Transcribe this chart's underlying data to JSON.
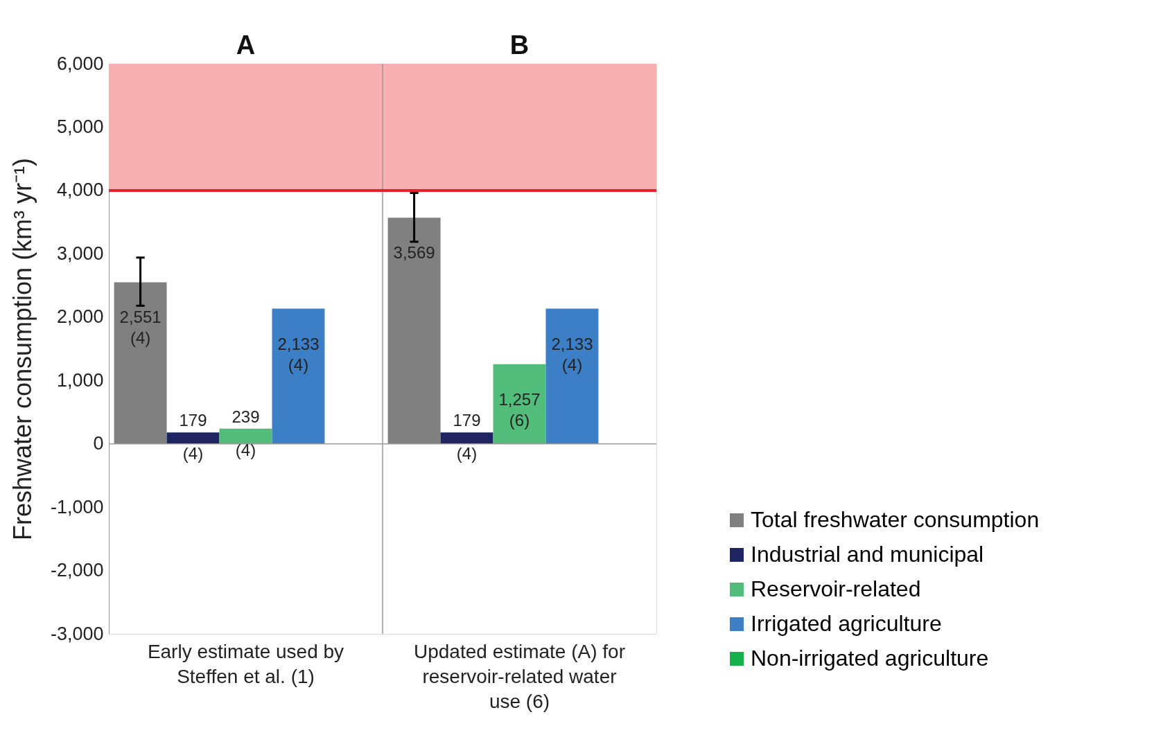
{
  "chart_data": {
    "type": "bar",
    "ylabel": "Freshwater consumption  (km³ yr⁻¹)",
    "categories": [
      "Early estimate used by Steffen et al. (1)",
      "Updated estimate (A) for reservoir-related water use (6)"
    ],
    "series": [
      {
        "name": "Total freshwater consumption",
        "color": "#808080",
        "values": [
          2551,
          3569
        ],
        "errors": [
          [
            2180,
            2940
          ],
          [
            3190,
            3960
          ]
        ],
        "value_labels": [
          "2,551 (4)",
          "3,569"
        ]
      },
      {
        "name": "Industrial and municipal",
        "color": "#1f2462",
        "values": [
          179,
          179
        ],
        "value_labels": [
          "179 (4)",
          "179 (4)"
        ]
      },
      {
        "name": "Reservoir-related",
        "color": "#52bd7a",
        "values": [
          239,
          1257
        ],
        "value_labels": [
          "239 (4)",
          "1,257 (6)"
        ]
      },
      {
        "name": "Irrigated agriculture",
        "color": "#3d7fc6",
        "values": [
          2133,
          2133
        ],
        "value_labels": [
          "2,133 (4)",
          "2,133 (4)"
        ]
      },
      {
        "name": "Non-irrigated agriculture",
        "color": "#14b04a",
        "values": [
          null,
          null
        ]
      }
    ],
    "annotations": [
      "A",
      "B"
    ],
    "ylim": [
      -3000,
      6000
    ],
    "yticks": [
      {
        "value": -3000,
        "label": "-3,000"
      },
      {
        "value": -2000,
        "label": "-2,000"
      },
      {
        "value": -1000,
        "label": "-1,000"
      },
      0,
      {
        "value": 1000,
        "label": "1,000"
      },
      {
        "value": 2000,
        "label": "2,000"
      },
      {
        "value": 3000,
        "label": "3,000"
      },
      {
        "value": 4000,
        "label": "4,000"
      },
      {
        "value": 5000,
        "label": "5,000"
      },
      {
        "value": 6000,
        "label": "6,000"
      }
    ],
    "bands": [
      {
        "axis": "y",
        "from": 4000,
        "to": 6000,
        "color": "#f7afb2"
      }
    ],
    "ref_lines": [
      {
        "axis": "y",
        "value": 4000,
        "color": "#e8202a"
      }
    ],
    "legend": "bottom right"
  }
}
